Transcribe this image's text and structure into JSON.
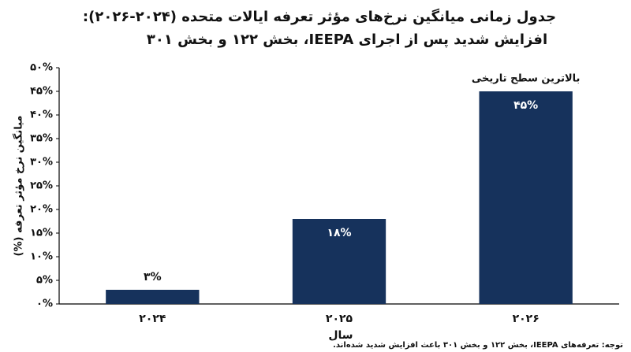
{
  "chart_data": {
    "type": "bar",
    "title": [
      "جدول زمانی میانگین نرخ‌های مؤثر تعرفه ایالات متحده (۲۰۲۴-۲۰۲۶):",
      "افزایش شدید پس از اجرای IEEPA، بخش ۱۲۲ و بخش ۳۰۱"
    ],
    "y_label": "میانگین نرخ مؤثر تعرفه (%)",
    "x_label": "سال",
    "categories": [
      "۲۰۲۴",
      "۲۰۲۵",
      "۲۰۲۶"
    ],
    "values": [
      3,
      18,
      45
    ],
    "value_labels": [
      "۳%",
      "۱۸%",
      "۴۵%"
    ],
    "color": "#16325c",
    "ylim": [
      0,
      50
    ],
    "yticks": [
      {
        "value": 0,
        "label": "۰%"
      },
      {
        "value": 5,
        "label": "۵%"
      },
      {
        "value": 10,
        "label": "۱۰%"
      },
      {
        "value": 15,
        "label": "۱۵%"
      },
      {
        "value": 20,
        "label": "۲۰%"
      },
      {
        "value": 25,
        "label": "۲۵%"
      },
      {
        "value": 30,
        "label": "۳۰%"
      },
      {
        "value": 35,
        "label": "۳۵%"
      },
      {
        "value": 40,
        "label": "۴۰%"
      },
      {
        "value": 45,
        "label": "۴۵%"
      },
      {
        "value": 50,
        "label": "۵۰%"
      }
    ],
    "grid": false,
    "annotation": {
      "text": "بالاترین سطح تاریخی",
      "category_index": 2
    },
    "note": "توجه: تعرفه‌های IEEPA، بخش ۱۲۲ و بخش ۳۰۱ باعث افزایش شدید شده‌اند."
  }
}
